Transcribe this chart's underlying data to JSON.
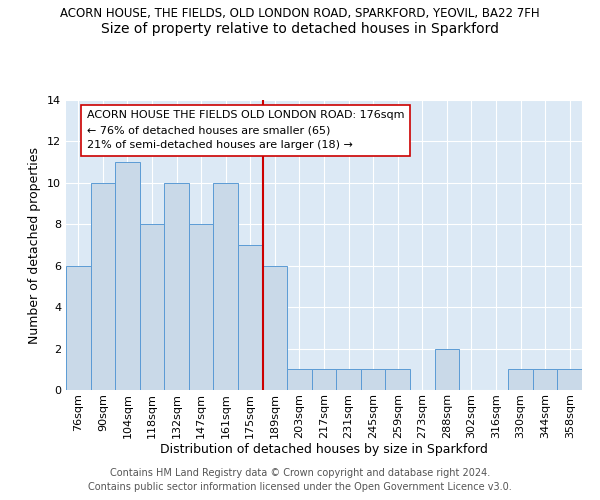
{
  "title": "ACORN HOUSE, THE FIELDS, OLD LONDON ROAD, SPARKFORD, YEOVIL, BA22 7FH",
  "subtitle": "Size of property relative to detached houses in Sparkford",
  "xlabel": "Distribution of detached houses by size in Sparkford",
  "ylabel": "Number of detached properties",
  "bar_labels": [
    "76sqm",
    "90sqm",
    "104sqm",
    "118sqm",
    "132sqm",
    "147sqm",
    "161sqm",
    "175sqm",
    "189sqm",
    "203sqm",
    "217sqm",
    "231sqm",
    "245sqm",
    "259sqm",
    "273sqm",
    "288sqm",
    "302sqm",
    "316sqm",
    "330sqm",
    "344sqm",
    "358sqm"
  ],
  "bar_values": [
    6,
    10,
    11,
    8,
    10,
    8,
    10,
    7,
    6,
    1,
    1,
    1,
    1,
    1,
    0,
    2,
    0,
    0,
    1,
    1,
    1
  ],
  "bar_color": "#c9d9e8",
  "bar_edge_color": "#5b9bd5",
  "vline_index": 7,
  "vline_color": "#cc0000",
  "annotation_text": "ACORN HOUSE THE FIELDS OLD LONDON ROAD: 176sqm\n← 76% of detached houses are smaller (65)\n21% of semi-detached houses are larger (18) →",
  "annotation_box_color": "white",
  "annotation_box_edge": "#cc0000",
  "ylim": [
    0,
    14
  ],
  "yticks": [
    0,
    2,
    4,
    6,
    8,
    10,
    12,
    14
  ],
  "footer": "Contains HM Land Registry data © Crown copyright and database right 2024.\nContains public sector information licensed under the Open Government Licence v3.0.",
  "bg_color": "#dce9f5",
  "title_fontsize": 8.5,
  "subtitle_fontsize": 10,
  "xlabel_fontsize": 9,
  "ylabel_fontsize": 9,
  "tick_fontsize": 8,
  "annotation_fontsize": 8,
  "footer_fontsize": 7
}
